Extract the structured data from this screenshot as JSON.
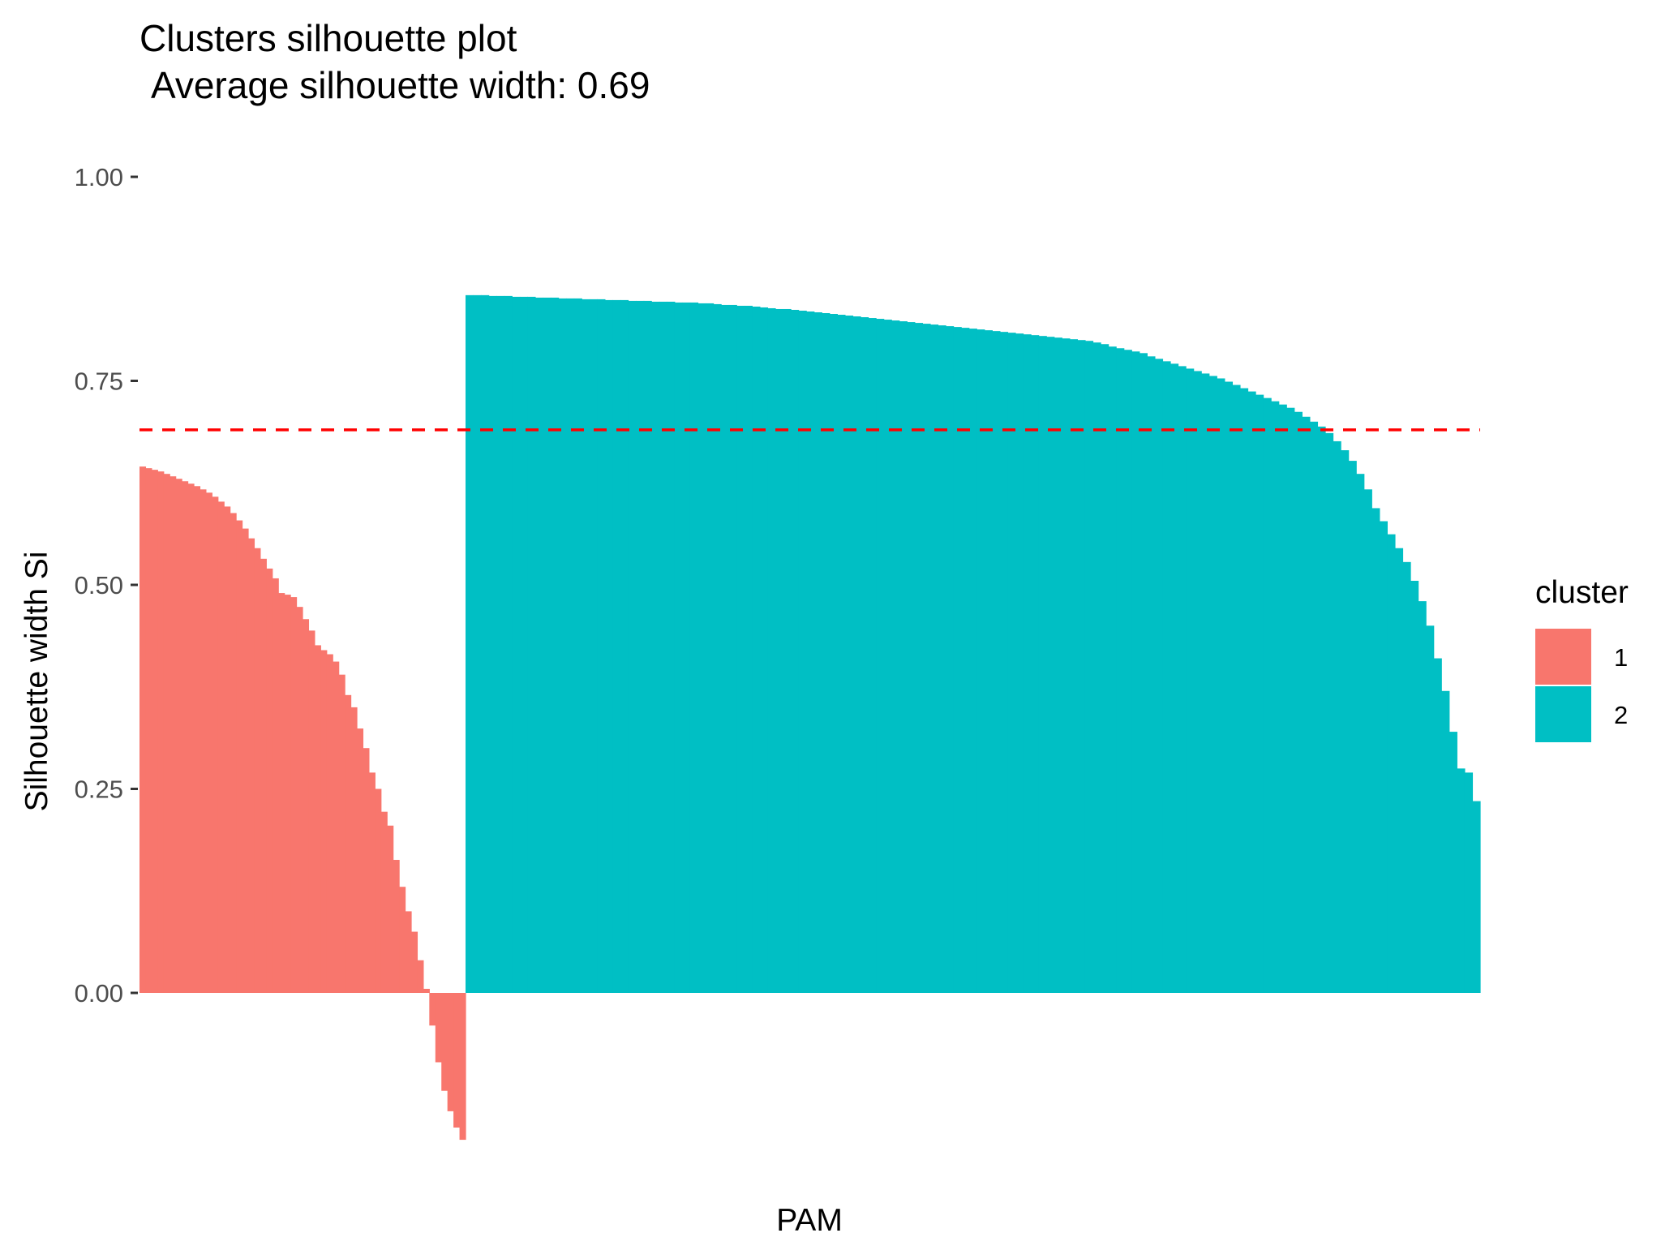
{
  "chart_data": {
    "type": "bar",
    "title": "Clusters silhouette plot",
    "subtitle": "Average silhouette width: 0.69",
    "xlabel": "PAM",
    "ylabel": "Silhouette width Si",
    "ylim": [
      -0.18,
      1.0
    ],
    "yticks": [
      "0.00",
      "0.25",
      "0.50",
      "0.75",
      "1.00"
    ],
    "average_silhouette_width": 0.69,
    "reference_line": {
      "y": 0.69,
      "style": "dashed",
      "color": "#FF0000"
    },
    "legend": {
      "title": "cluster",
      "position": "right"
    },
    "grid": false,
    "series": [
      {
        "name": "1",
        "color": "#F8766D",
        "values": [
          0.645,
          0.643,
          0.641,
          0.639,
          0.636,
          0.633,
          0.63,
          0.627,
          0.624,
          0.621,
          0.617,
          0.613,
          0.608,
          0.602,
          0.596,
          0.588,
          0.579,
          0.569,
          0.557,
          0.545,
          0.532,
          0.52,
          0.508,
          0.49,
          0.488,
          0.485,
          0.473,
          0.458,
          0.444,
          0.426,
          0.42,
          0.415,
          0.406,
          0.39,
          0.365,
          0.35,
          0.324,
          0.3,
          0.27,
          0.25,
          0.222,
          0.205,
          0.163,
          0.13,
          0.1,
          0.075,
          0.04,
          0.005,
          -0.04,
          -0.085,
          -0.12,
          -0.145,
          -0.165,
          -0.18
        ]
      },
      {
        "name": "2",
        "color": "#00BFC4",
        "values": [
          0.855,
          0.855,
          0.855,
          0.854,
          0.854,
          0.854,
          0.853,
          0.853,
          0.853,
          0.852,
          0.852,
          0.852,
          0.851,
          0.851,
          0.851,
          0.85,
          0.85,
          0.85,
          0.849,
          0.849,
          0.849,
          0.848,
          0.848,
          0.848,
          0.847,
          0.847,
          0.847,
          0.846,
          0.846,
          0.846,
          0.845,
          0.845,
          0.844,
          0.843,
          0.843,
          0.842,
          0.842,
          0.841,
          0.84,
          0.839,
          0.838,
          0.838,
          0.837,
          0.836,
          0.835,
          0.834,
          0.833,
          0.832,
          0.831,
          0.83,
          0.829,
          0.828,
          0.827,
          0.826,
          0.825,
          0.824,
          0.823,
          0.822,
          0.821,
          0.82,
          0.819,
          0.818,
          0.817,
          0.816,
          0.815,
          0.814,
          0.813,
          0.812,
          0.811,
          0.81,
          0.809,
          0.808,
          0.807,
          0.806,
          0.805,
          0.804,
          0.803,
          0.802,
          0.801,
          0.8,
          0.799,
          0.797,
          0.795,
          0.792,
          0.79,
          0.788,
          0.786,
          0.784,
          0.78,
          0.777,
          0.774,
          0.771,
          0.768,
          0.765,
          0.762,
          0.759,
          0.756,
          0.753,
          0.749,
          0.745,
          0.741,
          0.737,
          0.733,
          0.729,
          0.725,
          0.721,
          0.717,
          0.712,
          0.706,
          0.7,
          0.694,
          0.686,
          0.676,
          0.665,
          0.652,
          0.636,
          0.617,
          0.594,
          0.578,
          0.562,
          0.545,
          0.528,
          0.505,
          0.48,
          0.45,
          0.41,
          0.37,
          0.32,
          0.275,
          0.27,
          0.235
        ]
      }
    ]
  }
}
